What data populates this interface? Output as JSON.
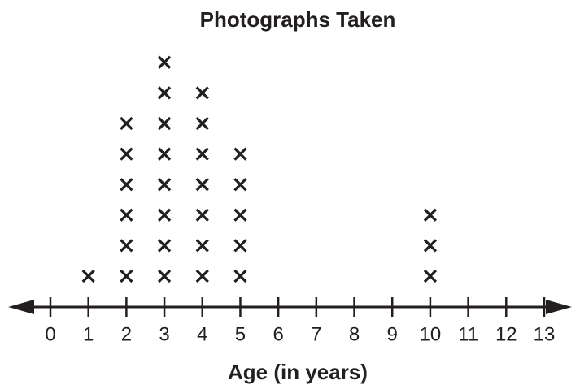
{
  "chart_data": {
    "type": "dot",
    "title": "Photographs Taken",
    "x_label": "Age (in years)",
    "x": [
      1,
      2,
      3,
      4,
      5,
      10
    ],
    "values": [
      1,
      6,
      8,
      7,
      5,
      3
    ],
    "xlim": [
      0,
      13
    ],
    "xticks": [
      0,
      1,
      2,
      3,
      4,
      5,
      6,
      7,
      8,
      9,
      10,
      11,
      12,
      13
    ],
    "color": "#231f20"
  }
}
